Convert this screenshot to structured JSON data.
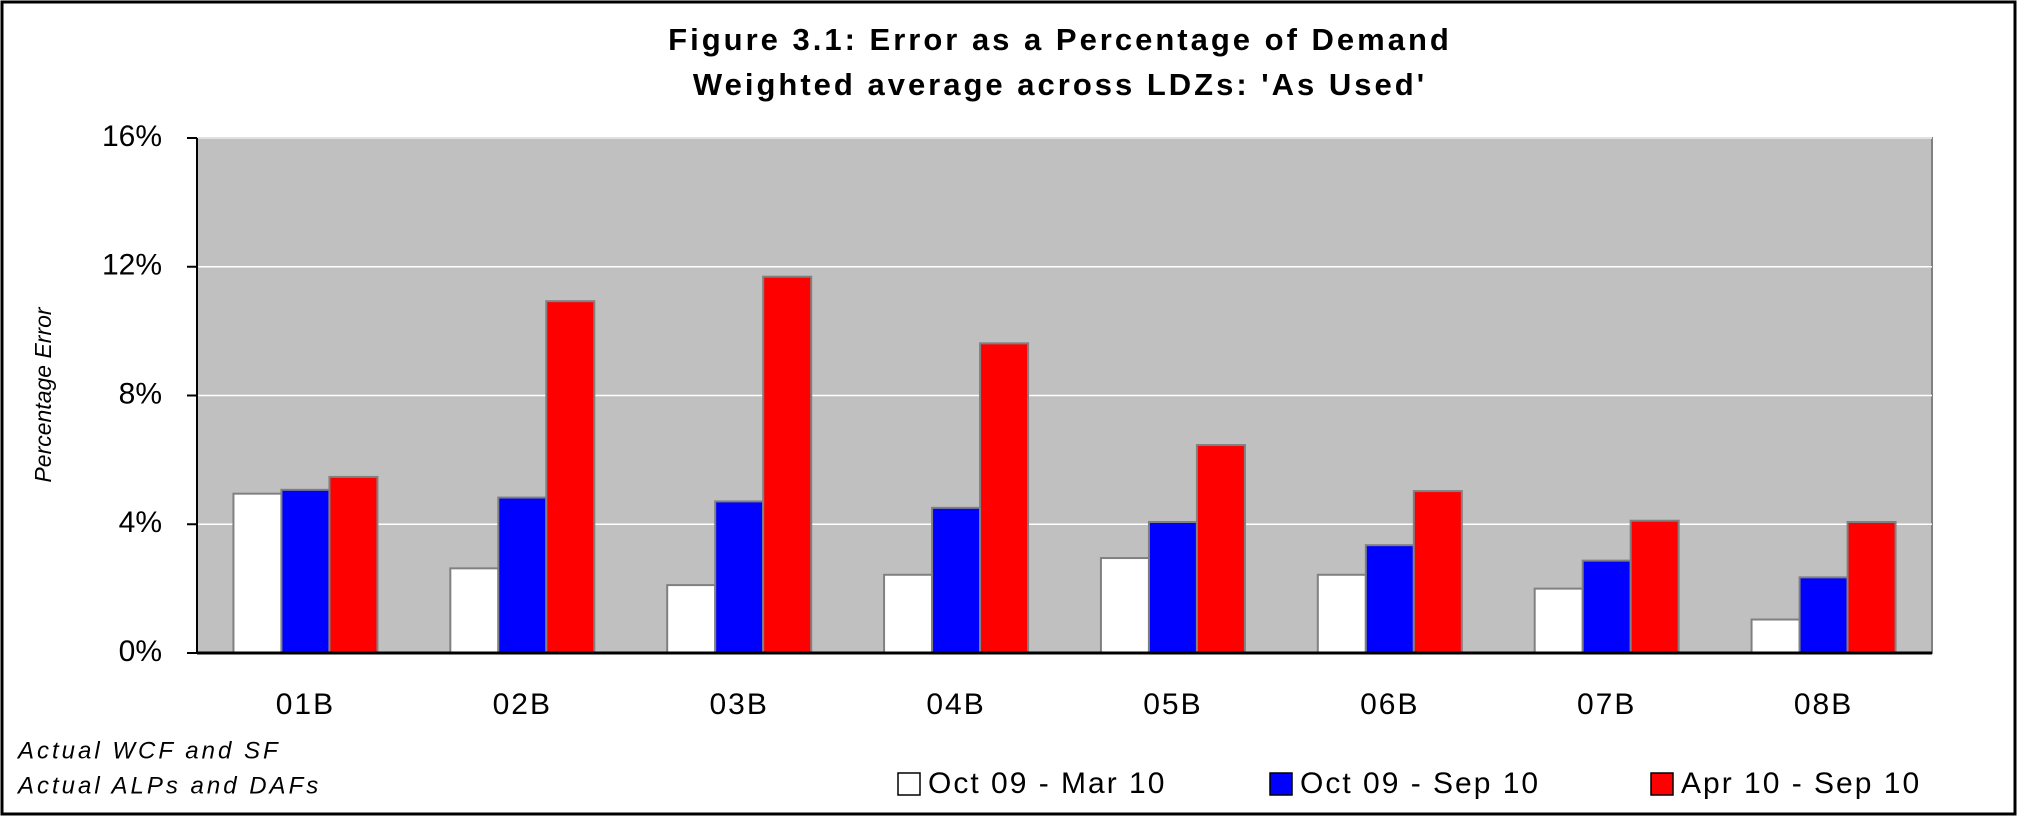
{
  "chart_data": {
    "type": "bar",
    "title": "Figure 3.1: Error as a Percentage of Demand",
    "subtitle": "Weighted average across LDZs: 'As Used'",
    "y_label": "Percentage Error",
    "notes": [
      "Actual WCF and SF",
      "Actual ALPs and DAFs"
    ],
    "categories": [
      "01B",
      "02B",
      "03B",
      "04B",
      "05B",
      "06B",
      "07B",
      "08B"
    ],
    "series": [
      {
        "name": "Oct 09 - Mar 10",
        "color": "#ffffff",
        "values": [
          4.95,
          2.63,
          2.11,
          2.43,
          2.95,
          2.43,
          2.0,
          1.04
        ]
      },
      {
        "name": "Oct 09 - Sep 10",
        "color": "#0000ff",
        "values": [
          5.07,
          4.83,
          4.71,
          4.51,
          4.07,
          3.35,
          2.87,
          2.35
        ]
      },
      {
        "name": "Apr 10 - Sep 10",
        "color": "#ff0000",
        "values": [
          5.47,
          10.93,
          11.69,
          9.62,
          6.46,
          5.03,
          4.11,
          4.07
        ]
      }
    ],
    "ylim": [
      0,
      16
    ],
    "yticks": [
      {
        "value": 0,
        "label": "0%"
      },
      {
        "value": 4,
        "label": "4%"
      },
      {
        "value": 8,
        "label": "8%"
      },
      {
        "value": 12,
        "label": "12%"
      },
      {
        "value": 16,
        "label": "16%"
      }
    ],
    "grid": true,
    "plot_background": "#c0c0c0",
    "legend": "bottom"
  }
}
